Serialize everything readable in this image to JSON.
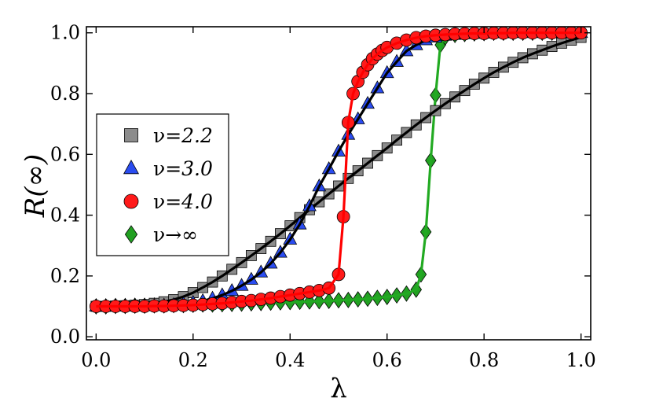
{
  "chart_data": {
    "type": "scatter",
    "title": "",
    "xlabel": "λ",
    "ylabel": "R(∞)",
    "xlim": [
      -0.02,
      1.02
    ],
    "ylim": [
      -0.01,
      1.02
    ],
    "xticks": [
      0.0,
      0.2,
      0.4,
      0.6,
      0.8,
      1.0
    ],
    "yticks": [
      0.0,
      0.2,
      0.4,
      0.6,
      0.8,
      1.0
    ],
    "xtick_labels": [
      "0.0",
      "0.2",
      "0.4",
      "0.6",
      "0.8",
      "1.0"
    ],
    "ytick_labels": [
      "0.0",
      "0.2",
      "0.4",
      "0.6",
      "0.8",
      "1.0"
    ],
    "legend_position": "center-left",
    "series": [
      {
        "name": "ν=2.2",
        "legend_prefix": "ν=",
        "legend_value": "2.2",
        "marker": "square",
        "color": "#8c8c8c",
        "line_color": "#000000",
        "x": [
          0.0,
          0.02,
          0.04,
          0.06,
          0.08,
          0.1,
          0.12,
          0.14,
          0.16,
          0.18,
          0.2,
          0.22,
          0.24,
          0.26,
          0.28,
          0.3,
          0.32,
          0.34,
          0.36,
          0.38,
          0.4,
          0.42,
          0.44,
          0.46,
          0.48,
          0.5,
          0.52,
          0.54,
          0.56,
          0.58,
          0.6,
          0.62,
          0.64,
          0.66,
          0.68,
          0.7,
          0.72,
          0.74,
          0.76,
          0.78,
          0.8,
          0.82,
          0.84,
          0.86,
          0.88,
          0.9,
          0.92,
          0.94,
          0.96,
          0.98,
          1.0
        ],
        "y": [
          0.1,
          0.1,
          0.101,
          0.102,
          0.104,
          0.106,
          0.11,
          0.115,
          0.122,
          0.132,
          0.145,
          0.162,
          0.18,
          0.2,
          0.222,
          0.244,
          0.267,
          0.29,
          0.314,
          0.339,
          0.365,
          0.392,
          0.418,
          0.444,
          0.47,
          0.496,
          0.521,
          0.546,
          0.571,
          0.596,
          0.621,
          0.647,
          0.672,
          0.697,
          0.721,
          0.744,
          0.767,
          0.789,
          0.81,
          0.831,
          0.851,
          0.87,
          0.887,
          0.903,
          0.918,
          0.931,
          0.943,
          0.955,
          0.966,
          0.976,
          0.985
        ]
      },
      {
        "name": "ν=3.0",
        "legend_prefix": "ν=",
        "legend_value": "3.0",
        "marker": "triangle",
        "color": "#2a4cf0",
        "line_color": "#000000",
        "x": [
          0.0,
          0.02,
          0.04,
          0.06,
          0.08,
          0.1,
          0.12,
          0.14,
          0.16,
          0.18,
          0.2,
          0.22,
          0.24,
          0.26,
          0.28,
          0.3,
          0.32,
          0.34,
          0.36,
          0.38,
          0.4,
          0.42,
          0.44,
          0.46,
          0.48,
          0.5,
          0.52,
          0.54,
          0.56,
          0.58,
          0.6,
          0.62,
          0.64,
          0.66,
          0.68,
          0.7,
          0.72,
          0.74,
          0.76,
          0.78,
          0.8,
          0.82,
          0.84,
          0.86,
          0.88,
          0.9,
          0.92,
          0.94,
          0.96,
          0.98,
          1.0
        ],
        "y": [
          0.1,
          0.1,
          0.1,
          0.1,
          0.1,
          0.101,
          0.102,
          0.103,
          0.105,
          0.108,
          0.112,
          0.118,
          0.126,
          0.137,
          0.151,
          0.168,
          0.188,
          0.212,
          0.241,
          0.277,
          0.32,
          0.37,
          0.43,
          0.495,
          0.552,
          0.61,
          0.665,
          0.716,
          0.767,
          0.818,
          0.868,
          0.905,
          0.94,
          0.96,
          0.976,
          0.985,
          0.991,
          0.994,
          0.996,
          0.997,
          0.998,
          0.999,
          0.999,
          1.0,
          1.0,
          1.0,
          1.0,
          1.0,
          1.0,
          1.0,
          1.0
        ]
      },
      {
        "name": "ν=4.0",
        "legend_prefix": "ν=",
        "legend_value": "4.0",
        "marker": "circle",
        "color": "#ff1a1a",
        "line_color": "#ff0000",
        "x": [
          0.0,
          0.02,
          0.04,
          0.06,
          0.08,
          0.1,
          0.12,
          0.14,
          0.16,
          0.18,
          0.2,
          0.22,
          0.24,
          0.26,
          0.28,
          0.3,
          0.32,
          0.34,
          0.36,
          0.38,
          0.4,
          0.42,
          0.44,
          0.46,
          0.48,
          0.5,
          0.51,
          0.52,
          0.53,
          0.54,
          0.55,
          0.56,
          0.57,
          0.58,
          0.59,
          0.6,
          0.62,
          0.64,
          0.66,
          0.68,
          0.7,
          0.72,
          0.74,
          0.76,
          0.78,
          0.8,
          0.82,
          0.84,
          0.86,
          0.88,
          0.9,
          0.92,
          0.94,
          0.96,
          0.98,
          1.0
        ],
        "y": [
          0.1,
          0.1,
          0.1,
          0.1,
          0.1,
          0.1,
          0.101,
          0.101,
          0.102,
          0.103,
          0.104,
          0.106,
          0.108,
          0.11,
          0.113,
          0.116,
          0.119,
          0.123,
          0.127,
          0.132,
          0.137,
          0.142,
          0.147,
          0.152,
          0.16,
          0.205,
          0.395,
          0.705,
          0.8,
          0.84,
          0.87,
          0.895,
          0.915,
          0.93,
          0.942,
          0.952,
          0.966,
          0.976,
          0.984,
          0.989,
          0.992,
          0.994,
          0.996,
          0.997,
          0.998,
          0.998,
          0.999,
          0.999,
          1.0,
          1.0,
          1.0,
          1.0,
          1.0,
          1.0,
          1.0,
          1.0
        ]
      },
      {
        "name": "ν→∞",
        "legend_prefix": "ν→∞",
        "legend_value": "",
        "marker": "diamond",
        "color": "#22a022",
        "line_color": "#22aa22",
        "x": [
          0.0,
          0.02,
          0.04,
          0.06,
          0.08,
          0.1,
          0.12,
          0.14,
          0.16,
          0.18,
          0.2,
          0.22,
          0.24,
          0.26,
          0.28,
          0.3,
          0.32,
          0.34,
          0.36,
          0.38,
          0.4,
          0.42,
          0.44,
          0.46,
          0.48,
          0.5,
          0.52,
          0.54,
          0.56,
          0.58,
          0.6,
          0.62,
          0.64,
          0.66,
          0.67,
          0.68,
          0.69,
          0.7,
          0.71,
          0.72,
          0.74,
          0.76,
          0.78,
          0.8,
          0.82,
          0.84,
          0.86,
          0.88,
          0.9,
          0.92,
          0.94,
          0.96,
          0.98,
          1.0
        ],
        "y": [
          0.1,
          0.1,
          0.101,
          0.101,
          0.102,
          0.102,
          0.103,
          0.103,
          0.104,
          0.104,
          0.105,
          0.106,
          0.106,
          0.107,
          0.108,
          0.109,
          0.11,
          0.111,
          0.112,
          0.113,
          0.114,
          0.115,
          0.116,
          0.117,
          0.118,
          0.12,
          0.121,
          0.123,
          0.125,
          0.128,
          0.131,
          0.136,
          0.142,
          0.155,
          0.205,
          0.345,
          0.58,
          0.795,
          0.96,
          0.985,
          0.993,
          0.996,
          0.998,
          0.999,
          1.0,
          1.0,
          1.0,
          1.0,
          1.0,
          1.0,
          1.0,
          1.0,
          1.0,
          1.0
        ]
      }
    ]
  }
}
